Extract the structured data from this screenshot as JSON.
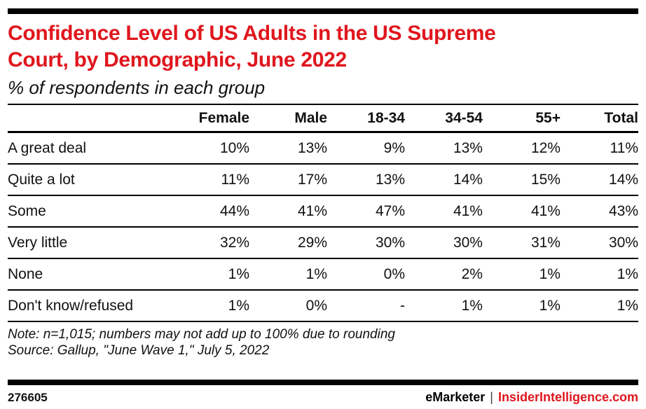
{
  "header": {
    "title_line1": "Confidence Level of US Adults in the US Supreme",
    "title_line2": "Court, by Demographic, June 2022",
    "subtitle": "% of respondents in each group"
  },
  "chart_data": {
    "type": "table",
    "title": "Confidence Level of US Adults in the US Supreme Court, by Demographic, June 2022",
    "subtitle": "% of respondents in each group",
    "columns": [
      "",
      "Female",
      "Male",
      "18-34",
      "34-54",
      "55+",
      "Total"
    ],
    "rows": [
      {
        "label": "A great deal",
        "values": [
          "10%",
          "13%",
          "9%",
          "13%",
          "12%",
          "11%"
        ]
      },
      {
        "label": "Quite a lot",
        "values": [
          "11%",
          "17%",
          "13%",
          "14%",
          "15%",
          "14%"
        ]
      },
      {
        "label": "Some",
        "values": [
          "44%",
          "41%",
          "47%",
          "41%",
          "41%",
          "43%"
        ]
      },
      {
        "label": "Very little",
        "values": [
          "32%",
          "29%",
          "30%",
          "30%",
          "31%",
          "30%"
        ]
      },
      {
        "label": "None",
        "values": [
          "1%",
          "1%",
          "0%",
          "2%",
          "1%",
          "1%"
        ]
      },
      {
        "label": "Don't know/refused",
        "values": [
          "1%",
          "0%",
          "-",
          "1%",
          "1%",
          "1%"
        ]
      }
    ]
  },
  "notes": {
    "note": "Note: n=1,015; numbers may not add up to 100% due to rounding",
    "source": "Source: Gallup, \"June Wave 1,\" July 5, 2022"
  },
  "footer": {
    "chart_id": "276605",
    "brand": "eMarketer",
    "separator": "|",
    "site": "InsiderIntelligence.com"
  },
  "colors": {
    "accent_red": "#e0161d",
    "text": "#111111",
    "rule": "#000000",
    "background": "#ffffff"
  }
}
